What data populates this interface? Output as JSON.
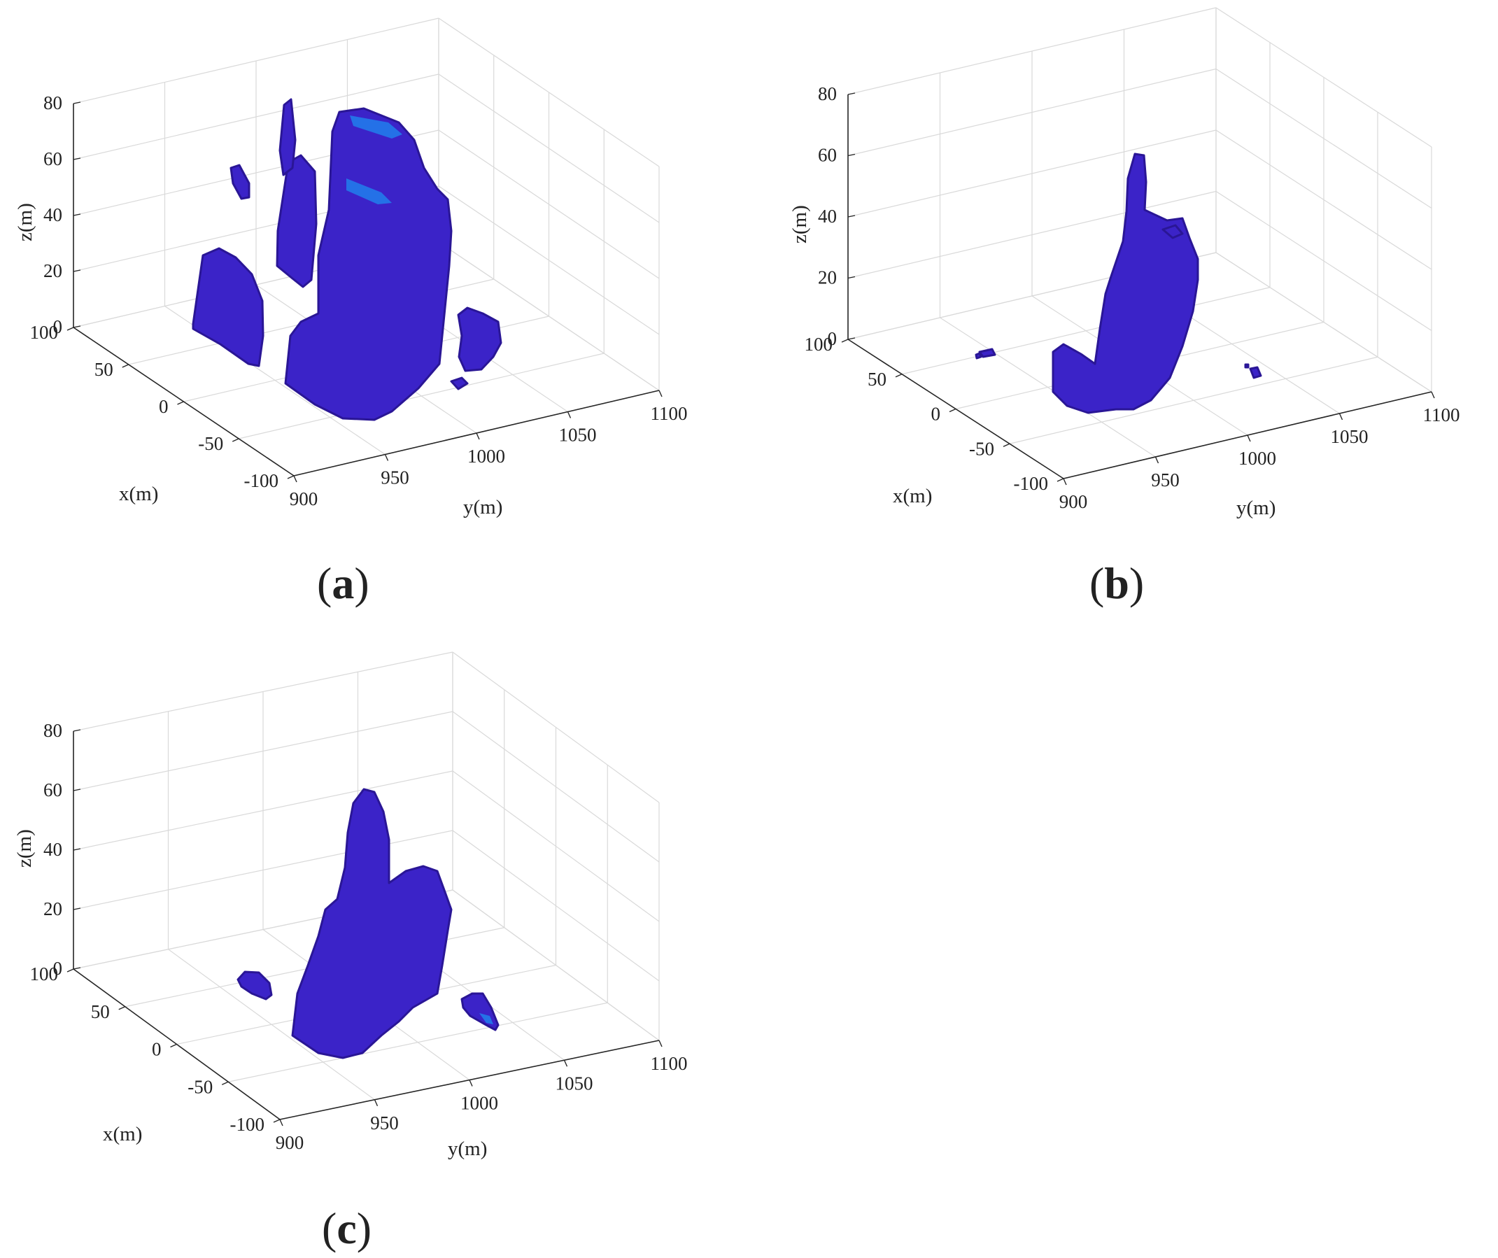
{
  "colors": {
    "voxel_fill": "#3b23c8",
    "voxel_edge": "#2a1696",
    "voxel_highlight": "#1d8cf2",
    "grid": "#d9d9d9",
    "axis": "#262626"
  },
  "chart_data": [
    {
      "type": "scatter3d",
      "panel_label": "(a)",
      "panel_letter": "a",
      "xlabel": "x(m)",
      "ylabel": "y(m)",
      "zlabel": "z(m)",
      "xlim": [
        -100,
        100
      ],
      "ylim": [
        900,
        1100
      ],
      "zlim": [
        0,
        80
      ],
      "x_ticks": [
        "100",
        "50",
        "0",
        "-50",
        "-100"
      ],
      "y_ticks": [
        "900",
        "950",
        "1000",
        "1050",
        "1100"
      ],
      "z_ticks": [
        "0",
        "20",
        "40",
        "60",
        "80"
      ],
      "grid": true,
      "point_groups": [
        {
          "x_range": [
            40,
            95
          ],
          "y_range": [
            905,
            925
          ],
          "z_range": [
            0,
            28
          ],
          "shape": "slab"
        },
        {
          "x_range": [
            55,
            62
          ],
          "y_range": [
            915,
            925
          ],
          "z_range": [
            55,
            72
          ],
          "shape": "blob"
        },
        {
          "x_range": [
            15,
            35
          ],
          "y_range": [
            920,
            940
          ],
          "z_range": [
            20,
            78
          ],
          "shape": "slab"
        },
        {
          "x_range": [
            -90,
            5
          ],
          "y_range": [
            935,
            975
          ],
          "z_range": [
            0,
            80
          ],
          "shape": "block"
        },
        {
          "x_range": [
            -40,
            -10
          ],
          "y_range": [
            1010,
            1030
          ],
          "z_range": [
            0,
            15
          ],
          "shape": "blob"
        }
      ]
    },
    {
      "type": "scatter3d",
      "panel_label": "(b)",
      "panel_letter": "b",
      "xlabel": "x(m)",
      "ylabel": "y(m)",
      "zlabel": "z(m)",
      "xlim": [
        -100,
        100
      ],
      "ylim": [
        900,
        1100
      ],
      "zlim": [
        0,
        80
      ],
      "x_ticks": [
        "100",
        "50",
        "0",
        "-50",
        "-100"
      ],
      "y_ticks": [
        "900",
        "950",
        "1000",
        "1050",
        "1100"
      ],
      "z_ticks": [
        "0",
        "20",
        "40",
        "60",
        "80"
      ],
      "grid": true,
      "point_groups": [
        {
          "x_range": [
            -85,
            10
          ],
          "y_range": [
            945,
            985
          ],
          "z_range": [
            0,
            60
          ],
          "shape": "scatter"
        },
        {
          "x_range": [
            60,
            70
          ],
          "y_range": [
            905,
            915
          ],
          "z_range": [
            0,
            3
          ],
          "shape": "blob"
        },
        {
          "x_range": [
            -45,
            -35
          ],
          "y_range": [
            1035,
            1045
          ],
          "z_range": [
            0,
            3
          ],
          "shape": "blob"
        }
      ]
    },
    {
      "type": "scatter3d",
      "panel_label": "(c)",
      "panel_letter": "c",
      "xlabel": "x(m)",
      "ylabel": "y(m)",
      "zlabel": "z(m)",
      "xlim": [
        -100,
        100
      ],
      "ylim": [
        900,
        1100
      ],
      "zlim": [
        0,
        80
      ],
      "x_ticks": [
        "100",
        "50",
        "0",
        "-50",
        "-100"
      ],
      "y_ticks": [
        "900",
        "950",
        "1000",
        "1050",
        "1100"
      ],
      "z_ticks": [
        "0",
        "20",
        "40",
        "60",
        "80"
      ],
      "grid": true,
      "point_groups": [
        {
          "x_range": [
            -80,
            15
          ],
          "y_range": [
            940,
            985
          ],
          "z_range": [
            0,
            65
          ],
          "shape": "block"
        },
        {
          "x_range": [
            40,
            60
          ],
          "y_range": [
            920,
            930
          ],
          "z_range": [
            0,
            5
          ],
          "shape": "blob"
        },
        {
          "x_range": [
            -50,
            -35
          ],
          "y_range": [
            1030,
            1045
          ],
          "z_range": [
            0,
            5
          ],
          "shape": "blob"
        }
      ]
    }
  ]
}
